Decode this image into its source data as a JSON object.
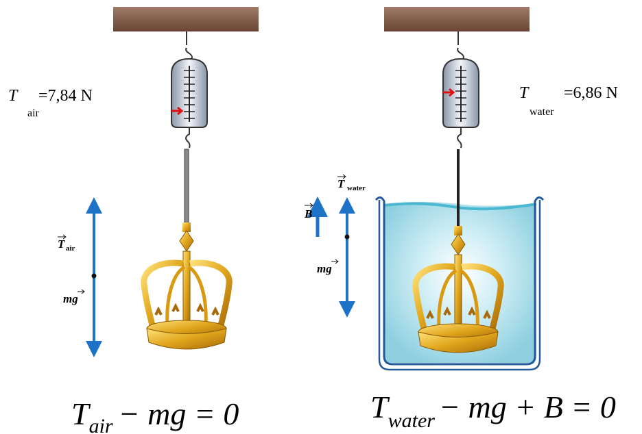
{
  "left": {
    "reading": {
      "symbol": "T",
      "subscript": "air",
      "value": "=7,84 N"
    },
    "tension_label": {
      "symbol": "T",
      "subscript": "air"
    },
    "weight_label": "mg",
    "equation": {
      "symbol": "T",
      "subscript": "air",
      "rest": "− mg = 0"
    }
  },
  "right": {
    "reading": {
      "symbol": "T",
      "subscript": "water",
      "value": "=6,86 N"
    },
    "tension_label": {
      "symbol": "T",
      "subscript": "water"
    },
    "buoyancy_label": "B",
    "weight_label": "mg",
    "equation": {
      "symbol": "T",
      "subscript": "water",
      "rest": "− mg + B = 0"
    }
  }
}
